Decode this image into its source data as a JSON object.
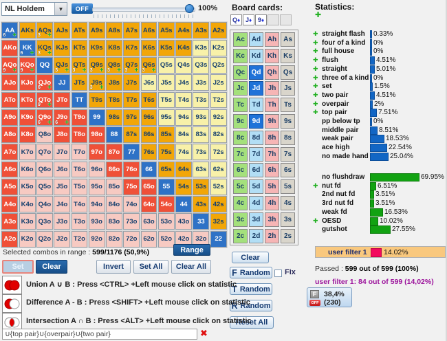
{
  "toolbar": {
    "game": "NL Holdem",
    "off_label": "OFF",
    "slider_label": "100%"
  },
  "board": {
    "title": "Board cards:",
    "cards": [
      {
        "rank": "Q",
        "suit": "♦"
      },
      {
        "rank": "J",
        "suit": "♦"
      },
      {
        "rank": "9",
        "suit": "♦"
      }
    ],
    "empty_slots": 2
  },
  "deck": {
    "ranks": [
      "A",
      "K",
      "Q",
      "J",
      "T",
      "9",
      "8",
      "7",
      "6",
      "5",
      "4",
      "3",
      "2"
    ],
    "suits": [
      "c",
      "d",
      "h",
      "s"
    ],
    "selected": [
      "Qd",
      "Jd",
      "9d"
    ]
  },
  "hand_grid": {
    "rows": [
      [
        {
          "h": "AA",
          "s": "P",
          "c": "6"
        },
        {
          "h": "AKs",
          "s": "S"
        },
        {
          "h": "AQs",
          "s": "S",
          "c": "3"
        },
        {
          "h": "AJs",
          "s": "S"
        },
        {
          "h": "ATs",
          "s": "S"
        },
        {
          "h": "A9s",
          "s": "S"
        },
        {
          "h": "A8s",
          "s": "S"
        },
        {
          "h": "A7s",
          "s": "S"
        },
        {
          "h": "A6s",
          "s": "S"
        },
        {
          "h": "A5s",
          "s": "S"
        },
        {
          "h": "A4s",
          "s": "S"
        },
        {
          "h": "A3s",
          "s": "S"
        },
        {
          "h": "A2s",
          "s": "S"
        }
      ],
      [
        {
          "h": "AKo",
          "s": "O"
        },
        {
          "h": "KK",
          "s": "P",
          "c": "6"
        },
        {
          "h": "KQs",
          "s": "S",
          "c": "3"
        },
        {
          "h": "KJs",
          "s": "S"
        },
        {
          "h": "KTs",
          "s": "S"
        },
        {
          "h": "K9s",
          "s": "S"
        },
        {
          "h": "K8s",
          "s": "S"
        },
        {
          "h": "K7s",
          "s": "S"
        },
        {
          "h": "K6s",
          "s": "S"
        },
        {
          "h": "K5s",
          "s": "S"
        },
        {
          "h": "K4s",
          "s": "S"
        },
        {
          "h": "K3s",
          "s": "Y"
        },
        {
          "h": "K2s",
          "s": "Y"
        }
      ],
      [
        {
          "h": "AQo",
          "s": "O",
          "c": "9"
        },
        {
          "h": "KQo",
          "s": "O",
          "c": "9"
        },
        {
          "h": "QQ",
          "s": "P"
        },
        {
          "h": "QJs",
          "s": "S",
          "c": "3"
        },
        {
          "h": "QTs",
          "s": "S",
          "c": "3"
        },
        {
          "h": "Q9s",
          "s": "S",
          "c": "3"
        },
        {
          "h": "Q8s",
          "s": "S",
          "c": "3"
        },
        {
          "h": "Q7s",
          "s": "S",
          "c": "3"
        },
        {
          "h": "Q6s",
          "s": "S",
          "c": "3"
        },
        {
          "h": "Q5s",
          "s": "Y"
        },
        {
          "h": "Q4s",
          "s": "Y"
        },
        {
          "h": "Q3s",
          "s": "Y"
        },
        {
          "h": "Q2s",
          "s": "Y"
        }
      ],
      [
        {
          "h": "AJo",
          "s": "O"
        },
        {
          "h": "KJo",
          "s": "O"
        },
        {
          "h": "QJo",
          "s": "O",
          "c": "6"
        },
        {
          "h": "JJ",
          "s": "P"
        },
        {
          "h": "JTs",
          "s": "S"
        },
        {
          "h": "J9s",
          "s": "S",
          "c": "3"
        },
        {
          "h": "J8s",
          "s": "S"
        },
        {
          "h": "J7s",
          "s": "S"
        },
        {
          "h": "J6s",
          "s": "Y"
        },
        {
          "h": "J5s",
          "s": "Y"
        },
        {
          "h": "J4s",
          "s": "Y"
        },
        {
          "h": "J3s",
          "s": "Y"
        },
        {
          "h": "J2s",
          "s": "Y"
        }
      ],
      [
        {
          "h": "ATo",
          "s": "O"
        },
        {
          "h": "KTo",
          "s": "O"
        },
        {
          "h": "QTo",
          "s": "O",
          "c": "9"
        },
        {
          "h": "JTo",
          "s": "O"
        },
        {
          "h": "TT",
          "s": "P"
        },
        {
          "h": "T9s",
          "s": "S"
        },
        {
          "h": "T8s",
          "s": "S"
        },
        {
          "h": "T7s",
          "s": "S"
        },
        {
          "h": "T6s",
          "s": "S"
        },
        {
          "h": "T5s",
          "s": "Y"
        },
        {
          "h": "T4s",
          "s": "Y"
        },
        {
          "h": "T3s",
          "s": "Y"
        },
        {
          "h": "T2s",
          "s": "Y"
        }
      ],
      [
        {
          "h": "A9o",
          "s": "O"
        },
        {
          "h": "K9o",
          "s": "O"
        },
        {
          "h": "Q9o",
          "s": "O",
          "c": "6"
        },
        {
          "h": "J9o",
          "s": "O",
          "c": "6"
        },
        {
          "h": "T9o",
          "s": "O"
        },
        {
          "h": "99",
          "s": "P"
        },
        {
          "h": "98s",
          "s": "S"
        },
        {
          "h": "97s",
          "s": "S"
        },
        {
          "h": "96s",
          "s": "S"
        },
        {
          "h": "95s",
          "s": "Y"
        },
        {
          "h": "94s",
          "s": "Y"
        },
        {
          "h": "93s",
          "s": "Y"
        },
        {
          "h": "92s",
          "s": "Y"
        }
      ],
      [
        {
          "h": "A8o",
          "s": "O"
        },
        {
          "h": "K8o",
          "s": "O"
        },
        {
          "h": "Q8o",
          "s": "N"
        },
        {
          "h": "J8o",
          "s": "O"
        },
        {
          "h": "T8o",
          "s": "O"
        },
        {
          "h": "98o",
          "s": "O"
        },
        {
          "h": "88",
          "s": "P"
        },
        {
          "h": "87s",
          "s": "S"
        },
        {
          "h": "86s",
          "s": "S"
        },
        {
          "h": "85s",
          "s": "S"
        },
        {
          "h": "84s",
          "s": "Y"
        },
        {
          "h": "83s",
          "s": "Y"
        },
        {
          "h": "82s",
          "s": "Y"
        }
      ],
      [
        {
          "h": "A7o",
          "s": "O"
        },
        {
          "h": "K7o",
          "s": "N"
        },
        {
          "h": "Q7o",
          "s": "N"
        },
        {
          "h": "J7o",
          "s": "N"
        },
        {
          "h": "T7o",
          "s": "N"
        },
        {
          "h": "97o",
          "s": "O"
        },
        {
          "h": "87o",
          "s": "O"
        },
        {
          "h": "77",
          "s": "P"
        },
        {
          "h": "76s",
          "s": "S"
        },
        {
          "h": "75s",
          "s": "S"
        },
        {
          "h": "74s",
          "s": "Y"
        },
        {
          "h": "73s",
          "s": "Y"
        },
        {
          "h": "72s",
          "s": "Y"
        }
      ],
      [
        {
          "h": "A6o",
          "s": "O"
        },
        {
          "h": "K6o",
          "s": "N"
        },
        {
          "h": "Q6o",
          "s": "N"
        },
        {
          "h": "J6o",
          "s": "N"
        },
        {
          "h": "T6o",
          "s": "N"
        },
        {
          "h": "96o",
          "s": "N"
        },
        {
          "h": "86o",
          "s": "O"
        },
        {
          "h": "76o",
          "s": "O"
        },
        {
          "h": "66",
          "s": "P"
        },
        {
          "h": "65s",
          "s": "S"
        },
        {
          "h": "64s",
          "s": "S"
        },
        {
          "h": "63s",
          "s": "Y"
        },
        {
          "h": "62s",
          "s": "Y"
        }
      ],
      [
        {
          "h": "A5o",
          "s": "O"
        },
        {
          "h": "K5o",
          "s": "N"
        },
        {
          "h": "Q5o",
          "s": "N"
        },
        {
          "h": "J5o",
          "s": "N"
        },
        {
          "h": "T5o",
          "s": "N"
        },
        {
          "h": "95o",
          "s": "N"
        },
        {
          "h": "85o",
          "s": "N"
        },
        {
          "h": "75o",
          "s": "O"
        },
        {
          "h": "65o",
          "s": "O"
        },
        {
          "h": "55",
          "s": "P"
        },
        {
          "h": "54s",
          "s": "S"
        },
        {
          "h": "53s",
          "s": "S"
        },
        {
          "h": "52s",
          "s": "Y"
        }
      ],
      [
        {
          "h": "A4o",
          "s": "O"
        },
        {
          "h": "K4o",
          "s": "N"
        },
        {
          "h": "Q4o",
          "s": "N"
        },
        {
          "h": "J4o",
          "s": "N"
        },
        {
          "h": "T4o",
          "s": "N"
        },
        {
          "h": "94o",
          "s": "N"
        },
        {
          "h": "84o",
          "s": "N"
        },
        {
          "h": "74o",
          "s": "N"
        },
        {
          "h": "64o",
          "s": "O"
        },
        {
          "h": "54o",
          "s": "O"
        },
        {
          "h": "44",
          "s": "P"
        },
        {
          "h": "43s",
          "s": "S"
        },
        {
          "h": "42s",
          "s": "S"
        }
      ],
      [
        {
          "h": "A3o",
          "s": "O"
        },
        {
          "h": "K3o",
          "s": "N"
        },
        {
          "h": "Q3o",
          "s": "N"
        },
        {
          "h": "J3o",
          "s": "N"
        },
        {
          "h": "T3o",
          "s": "N"
        },
        {
          "h": "93o",
          "s": "N"
        },
        {
          "h": "83o",
          "s": "N"
        },
        {
          "h": "73o",
          "s": "N"
        },
        {
          "h": "63o",
          "s": "N"
        },
        {
          "h": "53o",
          "s": "N"
        },
        {
          "h": "43o",
          "s": "N"
        },
        {
          "h": "33",
          "s": "P"
        },
        {
          "h": "32s",
          "s": "S"
        }
      ],
      [
        {
          "h": "A2o",
          "s": "O"
        },
        {
          "h": "K2o",
          "s": "N"
        },
        {
          "h": "Q2o",
          "s": "N"
        },
        {
          "h": "J2o",
          "s": "N"
        },
        {
          "h": "T2o",
          "s": "N"
        },
        {
          "h": "92o",
          "s": "N"
        },
        {
          "h": "82o",
          "s": "N"
        },
        {
          "h": "72o",
          "s": "N"
        },
        {
          "h": "62o",
          "s": "N"
        },
        {
          "h": "52o",
          "s": "N"
        },
        {
          "h": "42o",
          "s": "N"
        },
        {
          "h": "32o",
          "s": "N"
        },
        {
          "h": "22",
          "s": "P"
        }
      ]
    ]
  },
  "stats": {
    "title": "Statistics:",
    "rows": [
      {
        "label": "straight flash",
        "value": "0.33%",
        "pct": 0.33,
        "group": "blue",
        "plus": true
      },
      {
        "label": "four of a kind",
        "value": "0%",
        "pct": 0,
        "group": "blue",
        "plus": true
      },
      {
        "label": "full house",
        "value": "0%",
        "pct": 0,
        "group": "blue",
        "plus": true
      },
      {
        "label": "flush",
        "value": "4.51%",
        "pct": 4.51,
        "group": "blue",
        "plus": true
      },
      {
        "label": "straight",
        "value": "5.01%",
        "pct": 5.01,
        "group": "blue",
        "plus": true
      },
      {
        "label": "three of a kind",
        "value": "0%",
        "pct": 0,
        "group": "blue",
        "plus": true
      },
      {
        "label": "set",
        "value": "1.5%",
        "pct": 1.5,
        "group": "blue",
        "plus": true
      },
      {
        "label": "two pair",
        "value": "4.51%",
        "pct": 4.51,
        "group": "blue",
        "plus": true
      },
      {
        "label": "overpair",
        "value": "2%",
        "pct": 2,
        "group": "blue",
        "plus": true
      },
      {
        "label": "top pair",
        "value": "7.51%",
        "pct": 7.51,
        "group": "blue",
        "plus": true
      },
      {
        "label": "pp below tp",
        "value": "0%",
        "pct": 0,
        "group": "blue",
        "plus": false
      },
      {
        "label": "middle pair",
        "value": "8.51%",
        "pct": 8.51,
        "group": "blue",
        "plus": false
      },
      {
        "label": "weak pair",
        "value": "18.53%",
        "pct": 18.53,
        "group": "blue",
        "plus": false
      },
      {
        "label": "ace high",
        "value": "22.54%",
        "pct": 22.54,
        "group": "blue",
        "plus": false
      },
      {
        "label": "no made hand",
        "value": "25.04%",
        "pct": 25.04,
        "group": "blue",
        "plus": false
      },
      {
        "label": "no flushdraw",
        "value": "69.95%",
        "pct": 69.95,
        "group": "green",
        "plus": false
      },
      {
        "label": "nut fd",
        "value": "6.51%",
        "pct": 6.51,
        "group": "green",
        "plus": true
      },
      {
        "label": "2nd nut fd",
        "value": "3.51%",
        "pct": 3.51,
        "group": "green",
        "plus": false
      },
      {
        "label": "3rd nut fd",
        "value": "3.51%",
        "pct": 3.51,
        "group": "green",
        "plus": false
      },
      {
        "label": "weak fd",
        "value": "16.53%",
        "pct": 16.53,
        "group": "green",
        "plus": false
      },
      {
        "label": "OESD",
        "value": "10.02%",
        "pct": 10.02,
        "group": "green",
        "plus": true
      },
      {
        "label": "gutshot",
        "value": "27.55%",
        "pct": 27.55,
        "group": "green",
        "plus": false
      }
    ],
    "user_filter": {
      "label": "user filter 1",
      "value": "14.02%",
      "pct": 14.02
    },
    "passed": {
      "prefix": "Passed : ",
      "value": "599 out of 599 (100%)"
    },
    "user_filter_summary": "user filter 1: 84 out of 599 (14,02%)"
  },
  "filter_badge": {
    "letter": "F",
    "off": "OFF",
    "pct": "38,4%",
    "count": "(230)"
  },
  "range_summary": {
    "label": "Selected combos in range : ",
    "value": "599/1176 (50,9%)"
  },
  "buttons": {
    "range": "Range",
    "set": "Set",
    "clear": "Clear",
    "invert": "Invert",
    "set_all": "Set All",
    "clear_all": "Clear All",
    "board_clear": "Clear",
    "f_random": {
      "letter": "F",
      "label": "Random"
    },
    "t_random": {
      "letter": "T",
      "label": "Random"
    },
    "r_random": {
      "letter": "R",
      "label": "Random"
    },
    "fix_label": "Fix",
    "reset_all": "Reset All"
  },
  "venn": {
    "union": {
      "text": "Union A ∪ B : Press <CTRL> +Left mouse click on statistic"
    },
    "difference": {
      "text": "Difference A - B : Press <SHIFT> +Left mouse click on statistic"
    },
    "intersection": {
      "text": "Intersection A ∩ B : Press <ALT> +Left mouse click on statistic"
    }
  },
  "filter_expression": {
    "value": "∪{top pair}∪{overpair}∪{two pair}"
  }
}
